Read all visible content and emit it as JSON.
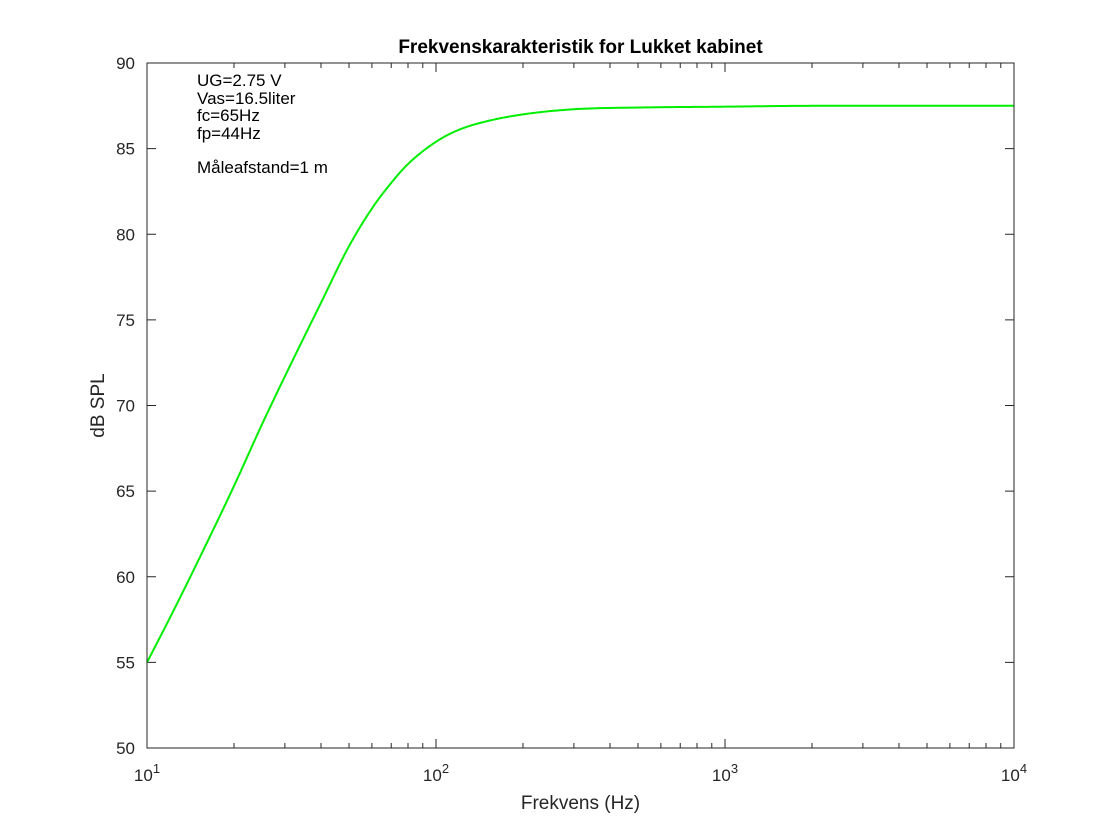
{
  "chart_data": {
    "type": "line",
    "title": "Frekvenskarakteristik for Lukket kabinet",
    "xlabel": "Frekvens (Hz)",
    "ylabel": "dB SPL",
    "xscale": "log",
    "xlim": [
      10,
      10000
    ],
    "ylim": [
      50,
      90
    ],
    "grid": false,
    "line_color": "#00ee00",
    "x_ticks": [
      {
        "base": "10",
        "exp": "1",
        "value": 10
      },
      {
        "base": "10",
        "exp": "2",
        "value": 100
      },
      {
        "base": "10",
        "exp": "3",
        "value": 1000
      },
      {
        "base": "10",
        "exp": "4",
        "value": 10000
      }
    ],
    "y_ticks": [
      "50",
      "55",
      "60",
      "65",
      "70",
      "75",
      "80",
      "85",
      "90"
    ],
    "annotations": [
      "UG=2.75 V",
      "Vas=16.5liter",
      "fc=65Hz",
      "fp=44Hz",
      "Måleafstand=1 m"
    ],
    "series": [
      {
        "x": [
          10,
          12,
          15,
          20,
          25,
          30,
          40,
          50,
          60,
          70,
          80,
          100,
          120,
          150,
          200,
          300,
          500,
          1000,
          2000,
          5000,
          10000
        ],
        "y": [
          55.0,
          57.6,
          60.9,
          65.3,
          68.9,
          71.7,
          76.0,
          79.3,
          81.5,
          83.0,
          84.1,
          85.4,
          86.1,
          86.6,
          87.0,
          87.3,
          87.4,
          87.45,
          87.5,
          87.5,
          87.5
        ]
      }
    ]
  }
}
